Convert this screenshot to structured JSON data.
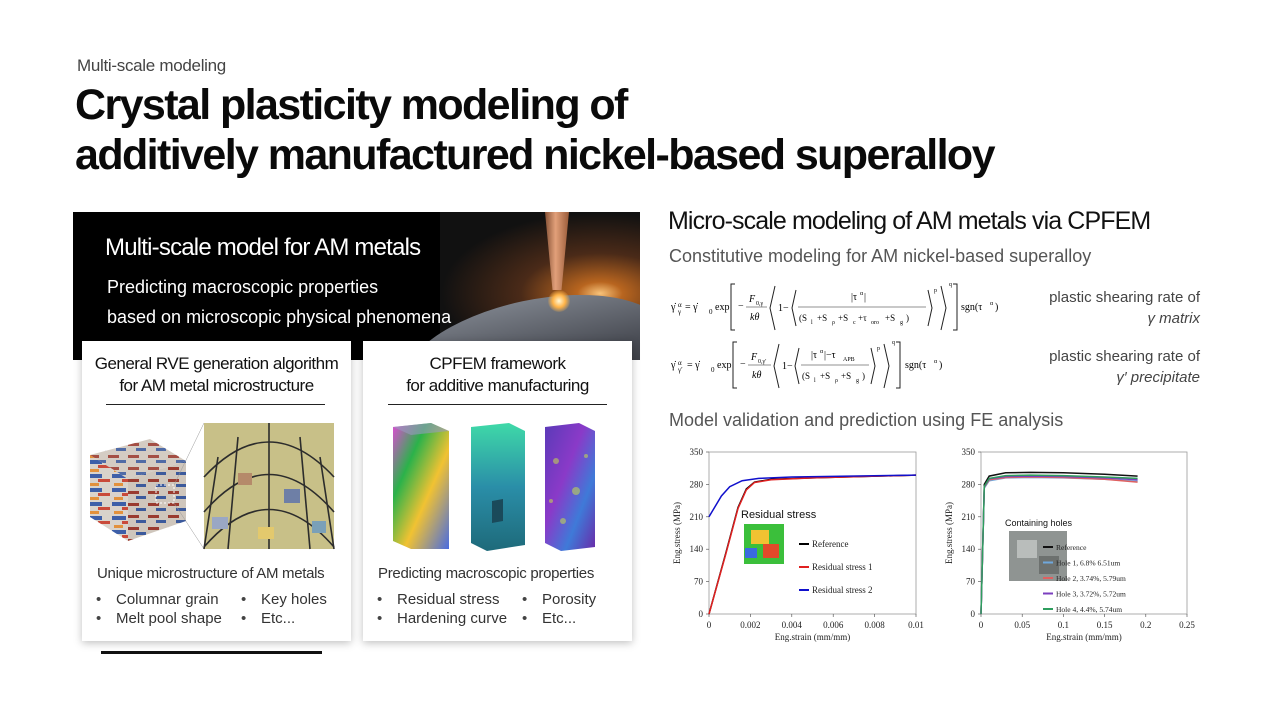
{
  "header": {
    "subtitle": "Multi-scale modeling",
    "title_line1": "Crystal plasticity modeling of",
    "title_line2": "additively manufactured nickel-based superalloy"
  },
  "banner": {
    "title": "Multi-scale model for AM metals",
    "desc_line1": "Predicting macroscopic properties",
    "desc_line2": "based on microscopic physical phenomena"
  },
  "card1": {
    "title_line1": "General RVE generation algorithm",
    "title_line2": "for AM metal microstructure",
    "caption": "Unique microstructure of AM metals",
    "bullets": [
      "Columnar grain",
      "Key holes",
      "Melt pool shape",
      "Etc..."
    ]
  },
  "card2": {
    "title_line1": "CPFEM framework",
    "title_line2": "for additive manufacturing",
    "caption": "Predicting macroscopic properties",
    "bullets": [
      "Residual stress",
      "Porosity",
      "Hardening curve",
      "Etc..."
    ]
  },
  "right": {
    "title": "Micro-scale modeling of AM metals via CPFEM",
    "sub1": "Constitutive modeling for AM nickel-based superalloy",
    "eq1_desc_line1": "plastic shearing rate of",
    "eq1_desc_line2": "γ matrix",
    "eq2_desc_line1": "plastic shearing rate of",
    "eq2_desc_line2": "γ′ precipitate",
    "sub2": "Model validation and prediction using FE analysis"
  },
  "chart_data": [
    {
      "type": "line",
      "xlabel": "Eng.strain (mm/mm)",
      "ylabel": "Eng.stress (MPa)",
      "xlim": [
        0,
        0.01
      ],
      "ylim": [
        0,
        350
      ],
      "xticks": [
        "0",
        "0.002",
        "0.004",
        "0.006",
        "0.008",
        "0.01"
      ],
      "yticks": [
        "0",
        "70",
        "140",
        "210",
        "280",
        "350"
      ],
      "inset_title": "Residual stress",
      "series": [
        {
          "name": "Reference",
          "color": "#000000",
          "x": [
            0,
            0.0008,
            0.0014,
            0.0018,
            0.0022,
            0.003,
            0.005,
            0.01
          ],
          "y": [
            0,
            130,
            230,
            270,
            285,
            291,
            294,
            300
          ]
        },
        {
          "name": "Residual stress 1",
          "color": "#e02020",
          "x": [
            0,
            0.0008,
            0.0014,
            0.0018,
            0.0022,
            0.003,
            0.005,
            0.01
          ],
          "y": [
            0,
            128,
            228,
            268,
            284,
            290,
            294,
            300
          ]
        },
        {
          "name": "Residual stress 2",
          "color": "#1010cc",
          "x": [
            0,
            0.0002,
            0.0006,
            0.001,
            0.0016,
            0.0024,
            0.004,
            0.01
          ],
          "y": [
            210,
            225,
            255,
            275,
            288,
            293,
            296,
            300
          ]
        }
      ]
    },
    {
      "type": "line",
      "xlabel": "Eng.strain (mm/mm)",
      "ylabel": "Eng.stress (MPa)",
      "xlim": [
        0,
        0.25
      ],
      "ylim": [
        0,
        350
      ],
      "xticks": [
        "0",
        "0.05",
        "0.1",
        "0.15",
        "0.2",
        "0.25"
      ],
      "yticks": [
        "0",
        "70",
        "140",
        "210",
        "280",
        "350"
      ],
      "inset_title": "Containing holes",
      "series": [
        {
          "name": "Reference",
          "color": "#111111",
          "x": [
            0,
            0.004,
            0.01,
            0.03,
            0.06,
            0.1,
            0.15,
            0.19
          ],
          "y": [
            0,
            280,
            298,
            305,
            306,
            305,
            302,
            298
          ]
        },
        {
          "name": "Hole 1, 6.8% 6.51um",
          "color": "#6fa8dc",
          "x": [
            0,
            0.004,
            0.01,
            0.03,
            0.06,
            0.1,
            0.15,
            0.19
          ],
          "y": [
            0,
            272,
            288,
            294,
            295,
            294,
            291,
            287
          ]
        },
        {
          "name": "Hole 2, 3.74%, 5.79um",
          "color": "#e06060",
          "x": [
            0,
            0.004,
            0.01,
            0.03,
            0.06,
            0.1,
            0.15,
            0.19
          ],
          "y": [
            0,
            274,
            290,
            295,
            296,
            295,
            291,
            285
          ]
        },
        {
          "name": "Hole 3, 3.72%, 5.72um",
          "color": "#7b3fbf",
          "x": [
            0,
            0.004,
            0.01,
            0.03,
            0.06,
            0.1,
            0.15,
            0.19
          ],
          "y": [
            0,
            275,
            292,
            297,
            298,
            297,
            294,
            290
          ]
        },
        {
          "name": "Hole 4, 4.4%, 5.74um",
          "color": "#2e9e5e",
          "x": [
            0,
            0.004,
            0.01,
            0.03,
            0.06,
            0.1,
            0.15,
            0.19
          ],
          "y": [
            0,
            276,
            293,
            299,
            300,
            299,
            296,
            293
          ]
        }
      ]
    }
  ]
}
